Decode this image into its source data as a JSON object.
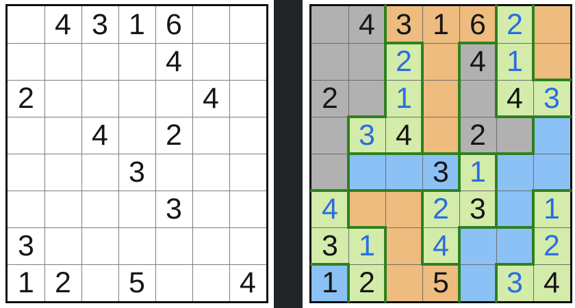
{
  "palette": {
    "page_bg": "#ffffff",
    "frame": "#0d0d0d",
    "divider_color": "#212428",
    "thin_line_left": "#7d7d7d",
    "thin_line_right": "#6c6c6c",
    "cage_border": "#2e8020",
    "fills": {
      "white": "#ffffff",
      "gray": "#b1b1b1",
      "orange": "#edbc7e",
      "green": "#d3ecaa",
      "blue": "#8cc1f6"
    },
    "digit_styles": {
      "g": "#161616",
      "u": "#2b6de0"
    }
  },
  "left_grid": {
    "label": "given-puzzle",
    "cols": 7,
    "rows": 8,
    "values": [
      [
        "",
        "4",
        "3",
        "1",
        "6",
        "",
        ""
      ],
      [
        "",
        "",
        "",
        "",
        "4",
        "",
        ""
      ],
      [
        "2",
        "",
        "",
        "",
        "",
        "4",
        ""
      ],
      [
        "",
        "",
        "4",
        "",
        "2",
        "",
        ""
      ],
      [
        "",
        "",
        "",
        "3",
        "",
        "",
        ""
      ],
      [
        "",
        "",
        "",
        "",
        "3",
        "",
        ""
      ],
      [
        "3",
        "",
        "",
        "",
        "",
        "",
        ""
      ],
      [
        "1",
        "2",
        "",
        "5",
        "",
        "",
        "4"
      ]
    ],
    "value_types": [
      [
        "",
        "g",
        "g",
        "g",
        "g",
        "",
        ""
      ],
      [
        "",
        "",
        "",
        "",
        "g",
        "",
        ""
      ],
      [
        "g",
        "",
        "",
        "",
        "",
        "g",
        ""
      ],
      [
        "",
        "",
        "g",
        "",
        "g",
        "",
        ""
      ],
      [
        "",
        "",
        "",
        "g",
        "",
        "",
        ""
      ],
      [
        "",
        "",
        "",
        "",
        "g",
        "",
        ""
      ],
      [
        "g",
        "",
        "",
        "",
        "",
        "",
        ""
      ],
      [
        "g",
        "g",
        "",
        "g",
        "",
        "",
        "g"
      ]
    ],
    "colors": [
      [
        "white",
        "white",
        "white",
        "white",
        "white",
        "white",
        "white"
      ],
      [
        "white",
        "white",
        "white",
        "white",
        "white",
        "white",
        "white"
      ],
      [
        "white",
        "white",
        "white",
        "white",
        "white",
        "white",
        "white"
      ],
      [
        "white",
        "white",
        "white",
        "white",
        "white",
        "white",
        "white"
      ],
      [
        "white",
        "white",
        "white",
        "white",
        "white",
        "white",
        "white"
      ],
      [
        "white",
        "white",
        "white",
        "white",
        "white",
        "white",
        "white"
      ],
      [
        "white",
        "white",
        "white",
        "white",
        "white",
        "white",
        "white"
      ],
      [
        "white",
        "white",
        "white",
        "white",
        "white",
        "white",
        "white"
      ]
    ],
    "cage_edges_h": [],
    "cage_edges_v": []
  },
  "right_grid": {
    "label": "progress-puzzle",
    "cols": 7,
    "rows": 8,
    "values": [
      [
        "",
        "4",
        "3",
        "1",
        "6",
        "2",
        ""
      ],
      [
        "",
        "",
        "2",
        "",
        "4",
        "1",
        ""
      ],
      [
        "2",
        "",
        "1",
        "",
        "",
        "4",
        "3"
      ],
      [
        "",
        "3",
        "4",
        "",
        "2",
        "",
        ""
      ],
      [
        "",
        "",
        "",
        "3",
        "1",
        "",
        ""
      ],
      [
        "4",
        "",
        "",
        "2",
        "3",
        "",
        "1"
      ],
      [
        "3",
        "1",
        "",
        "4",
        "",
        "",
        "2"
      ],
      [
        "1",
        "2",
        "",
        "5",
        "",
        "3",
        "4"
      ]
    ],
    "value_types": [
      [
        "",
        "g",
        "g",
        "g",
        "g",
        "u",
        ""
      ],
      [
        "",
        "",
        "u",
        "",
        "g",
        "u",
        ""
      ],
      [
        "g",
        "",
        "u",
        "",
        "",
        "g",
        "u"
      ],
      [
        "",
        "u",
        "g",
        "",
        "g",
        "",
        ""
      ],
      [
        "",
        "",
        "",
        "g",
        "u",
        "",
        ""
      ],
      [
        "u",
        "",
        "",
        "u",
        "g",
        "",
        "u"
      ],
      [
        "g",
        "u",
        "",
        "u",
        "",
        "",
        "u"
      ],
      [
        "g",
        "g",
        "",
        "g",
        "",
        "u",
        "g"
      ]
    ],
    "colors": [
      [
        "gray",
        "gray",
        "orange",
        "orange",
        "orange",
        "green",
        "orange"
      ],
      [
        "gray",
        "gray",
        "green",
        "orange",
        "gray",
        "green",
        "orange"
      ],
      [
        "gray",
        "gray",
        "green",
        "orange",
        "gray",
        "green",
        "green"
      ],
      [
        "gray",
        "green",
        "green",
        "orange",
        "gray",
        "gray",
        "blue"
      ],
      [
        "gray",
        "blue",
        "blue",
        "blue",
        "green",
        "blue",
        "blue"
      ],
      [
        "green",
        "orange",
        "orange",
        "green",
        "green",
        "blue",
        "green"
      ],
      [
        "green",
        "green",
        "orange",
        "green",
        "blue",
        "blue",
        "green"
      ],
      [
        "blue",
        "green",
        "orange",
        "orange",
        "blue",
        "green",
        "green"
      ]
    ],
    "cage_edges_h": [
      [
        1,
        3
      ],
      [
        1,
        5
      ],
      [
        2,
        7
      ],
      [
        3,
        2
      ],
      [
        3,
        6
      ],
      [
        3,
        7
      ],
      [
        4,
        2
      ],
      [
        4,
        3
      ],
      [
        4,
        4
      ],
      [
        4,
        5
      ],
      [
        4,
        6
      ],
      [
        5,
        1
      ],
      [
        5,
        2
      ],
      [
        5,
        3
      ],
      [
        5,
        4
      ],
      [
        5,
        7
      ],
      [
        6,
        2
      ],
      [
        6,
        5
      ],
      [
        6,
        6
      ],
      [
        7,
        1
      ],
      [
        7,
        4
      ],
      [
        7,
        6
      ]
    ],
    "cage_edges_v": [
      [
        1,
        2
      ],
      [
        1,
        5
      ],
      [
        1,
        6
      ],
      [
        2,
        2
      ],
      [
        2,
        3
      ],
      [
        2,
        4
      ],
      [
        2,
        5
      ],
      [
        2,
        6
      ],
      [
        3,
        2
      ],
      [
        3,
        3
      ],
      [
        3,
        4
      ],
      [
        3,
        5
      ],
      [
        4,
        1
      ],
      [
        4,
        3
      ],
      [
        4,
        4
      ],
      [
        4,
        6
      ],
      [
        5,
        1
      ],
      [
        5,
        4
      ],
      [
        5,
        5
      ],
      [
        6,
        1
      ],
      [
        6,
        3
      ],
      [
        6,
        5
      ],
      [
        6,
        6
      ],
      [
        7,
        2
      ],
      [
        7,
        3
      ],
      [
        7,
        4
      ],
      [
        7,
        6
      ],
      [
        8,
        1
      ],
      [
        8,
        2
      ],
      [
        8,
        4
      ],
      [
        8,
        5
      ]
    ]
  },
  "layout_note": ""
}
